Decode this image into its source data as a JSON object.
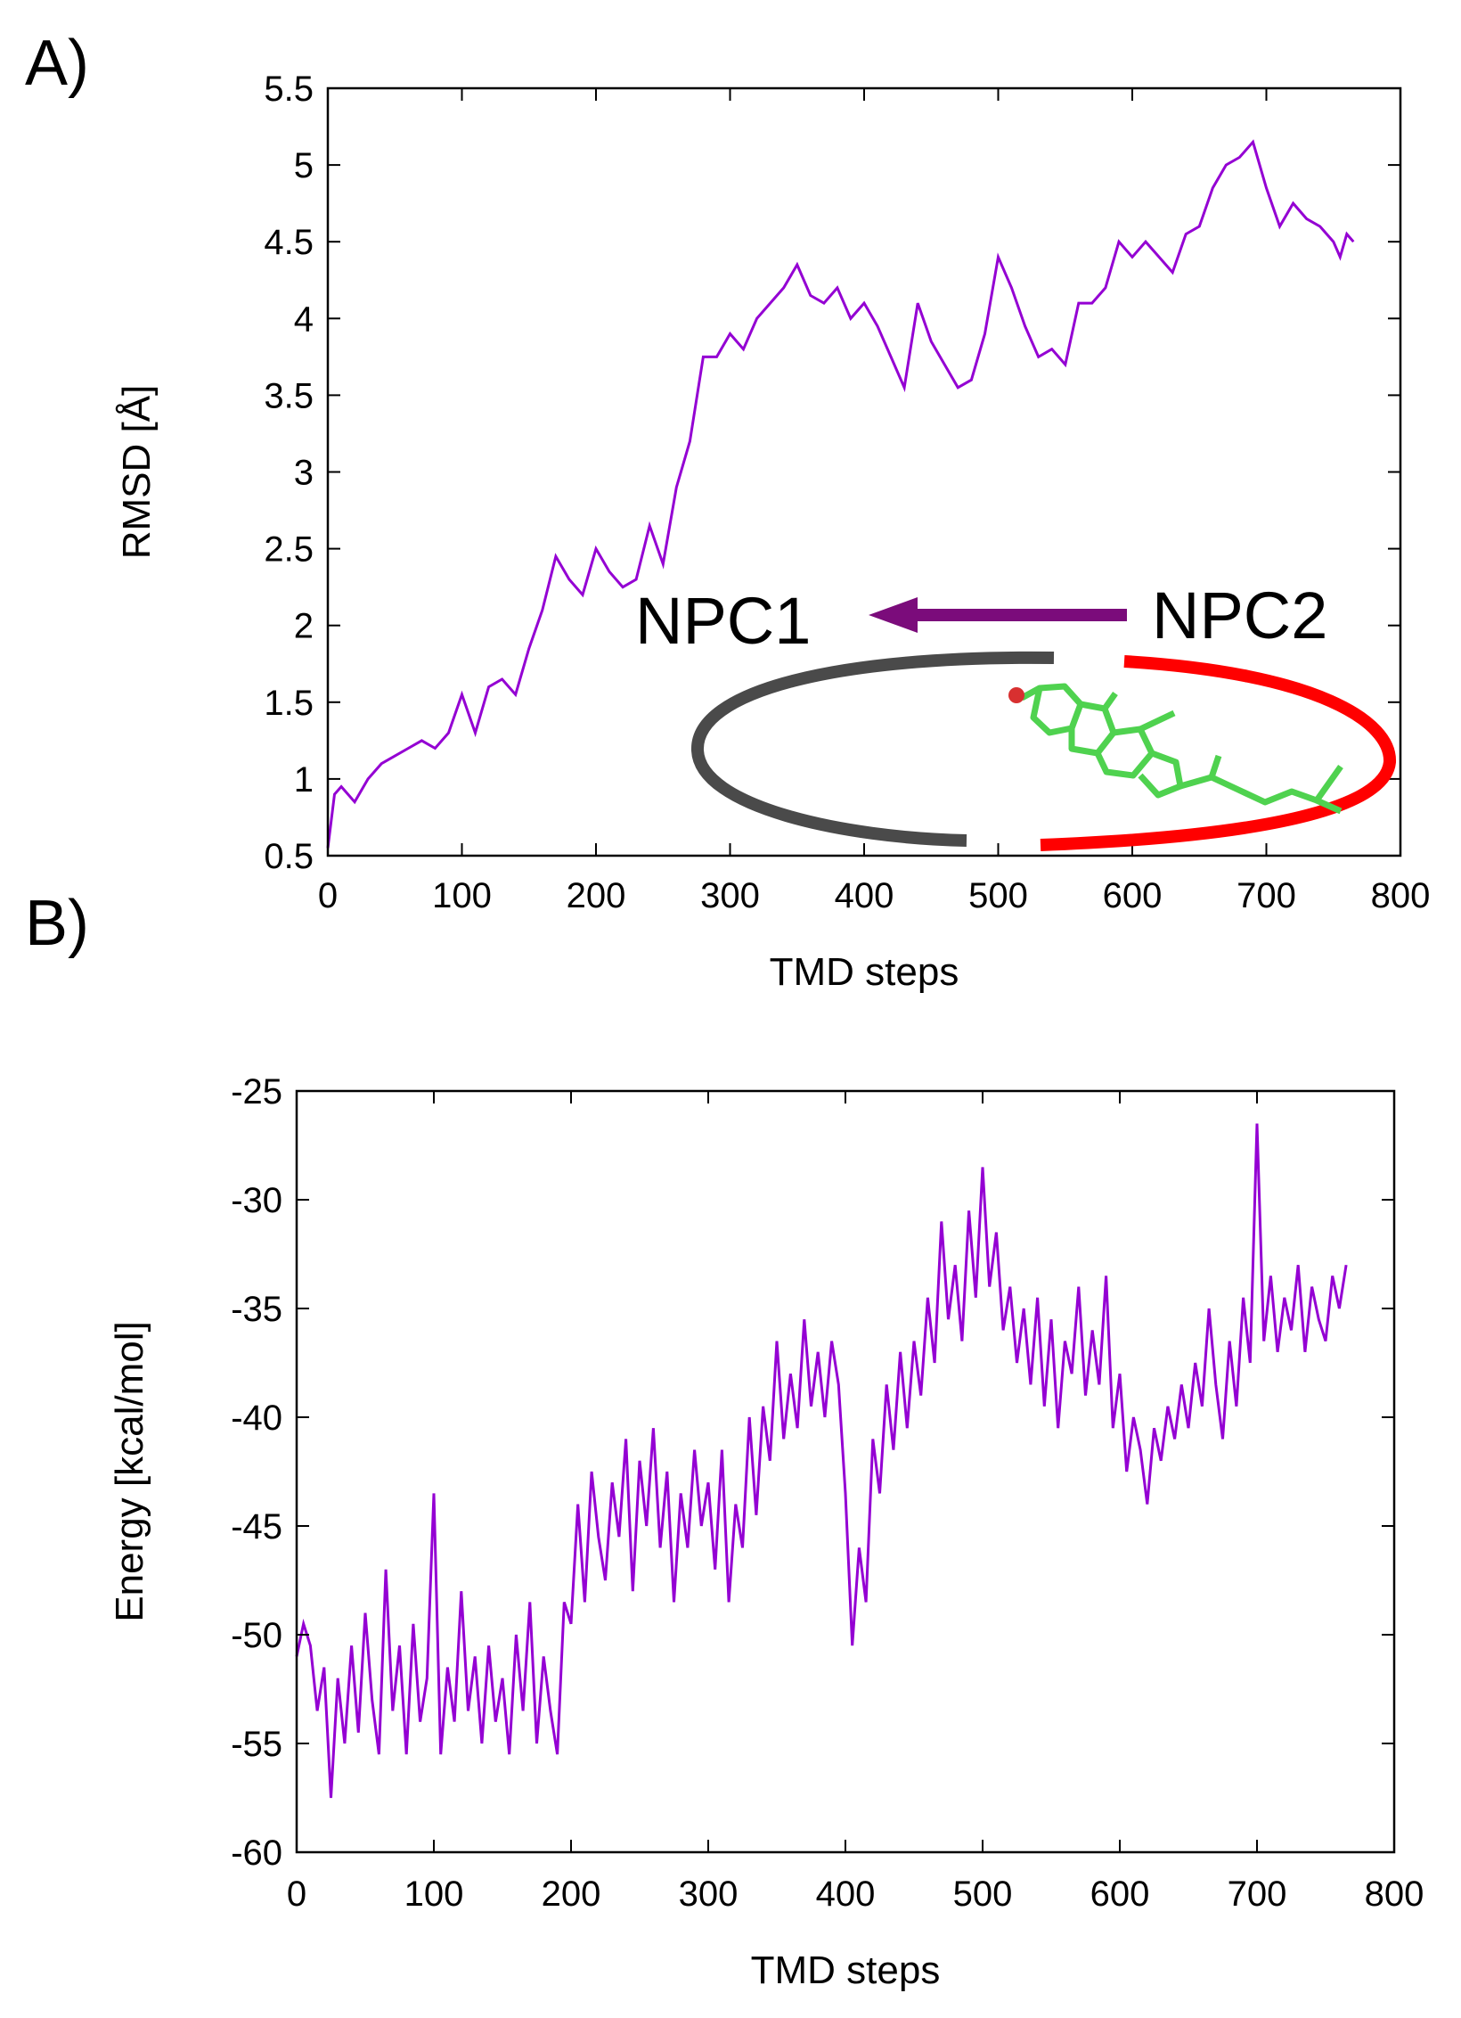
{
  "panels": {
    "a": "A)",
    "b": "B)"
  },
  "colors": {
    "line": "#9400d3",
    "arrow": "#7b0c7b",
    "npc1_ring": "#4a4a4a",
    "npc2_ring": "#ff0000",
    "molecule": "#4fd24f",
    "oxygen": "#d83030"
  },
  "inset": {
    "npc1": "NPC1",
    "npc2": "NPC2"
  },
  "chart_data": [
    {
      "type": "line",
      "title": "",
      "xlabel": "TMD steps",
      "ylabel": "RMSD [Å]",
      "xlim": [
        0,
        800
      ],
      "ylim": [
        0.5,
        5.5
      ],
      "xticks": [
        "0",
        "100",
        "200",
        "300",
        "400",
        "500",
        "600",
        "700",
        "800"
      ],
      "yticks": [
        "0.5",
        "1",
        "1.5",
        "2",
        "2.5",
        "3",
        "3.5",
        "4",
        "4.5",
        "5",
        "5.5"
      ],
      "series": [
        {
          "name": "RMSD",
          "x": [
            0,
            5,
            10,
            20,
            30,
            40,
            50,
            60,
            70,
            80,
            90,
            100,
            110,
            120,
            130,
            140,
            150,
            160,
            170,
            180,
            190,
            200,
            210,
            220,
            230,
            240,
            250,
            260,
            270,
            280,
            290,
            300,
            310,
            320,
            330,
            340,
            350,
            360,
            370,
            380,
            390,
            400,
            410,
            420,
            430,
            440,
            450,
            460,
            470,
            480,
            490,
            500,
            510,
            520,
            530,
            540,
            550,
            560,
            570,
            580,
            590,
            600,
            610,
            620,
            630,
            640,
            650,
            660,
            670,
            680,
            690,
            700,
            710,
            720,
            730,
            740,
            750,
            755,
            760,
            765
          ],
          "y": [
            0.55,
            0.9,
            0.95,
            0.85,
            1.0,
            1.1,
            1.15,
            1.2,
            1.25,
            1.2,
            1.3,
            1.55,
            1.3,
            1.6,
            1.65,
            1.55,
            1.85,
            2.1,
            2.45,
            2.3,
            2.2,
            2.5,
            2.35,
            2.25,
            2.3,
            2.65,
            2.4,
            2.9,
            3.2,
            3.75,
            3.75,
            3.9,
            3.8,
            4.0,
            4.1,
            4.2,
            4.35,
            4.15,
            4.1,
            4.2,
            4.0,
            4.1,
            3.95,
            3.75,
            3.55,
            4.1,
            3.85,
            3.7,
            3.55,
            3.6,
            3.9,
            4.4,
            4.2,
            3.95,
            3.75,
            3.8,
            3.7,
            4.1,
            4.1,
            4.2,
            4.5,
            4.4,
            4.5,
            4.4,
            4.3,
            4.55,
            4.6,
            4.85,
            5.0,
            5.05,
            5.15,
            4.85,
            4.6,
            4.75,
            4.65,
            4.6,
            4.5,
            4.4,
            4.55,
            4.5
          ]
        }
      ]
    },
    {
      "type": "line",
      "title": "",
      "xlabel": "TMD steps",
      "ylabel": "Energy [kcal/mol]",
      "xlim": [
        0,
        800
      ],
      "ylim": [
        -60,
        -25
      ],
      "xticks": [
        "0",
        "100",
        "200",
        "300",
        "400",
        "500",
        "600",
        "700",
        "800"
      ],
      "yticks": [
        "-25",
        "-30",
        "-35",
        "-40",
        "-45",
        "-50",
        "-55",
        "-60"
      ],
      "series": [
        {
          "name": "Energy",
          "x": [
            0,
            5,
            10,
            15,
            20,
            25,
            30,
            35,
            40,
            45,
            50,
            55,
            60,
            65,
            70,
            75,
            80,
            85,
            90,
            95,
            100,
            105,
            110,
            115,
            120,
            125,
            130,
            135,
            140,
            145,
            150,
            155,
            160,
            165,
            170,
            175,
            180,
            185,
            190,
            195,
            200,
            205,
            210,
            215,
            220,
            225,
            230,
            235,
            240,
            245,
            250,
            255,
            260,
            265,
            270,
            275,
            280,
            285,
            290,
            295,
            300,
            305,
            310,
            315,
            320,
            325,
            330,
            335,
            340,
            345,
            350,
            355,
            360,
            365,
            370,
            375,
            380,
            385,
            390,
            395,
            400,
            405,
            410,
            415,
            420,
            425,
            430,
            435,
            440,
            445,
            450,
            455,
            460,
            465,
            470,
            475,
            480,
            485,
            490,
            495,
            500,
            505,
            510,
            515,
            520,
            525,
            530,
            535,
            540,
            545,
            550,
            555,
            560,
            565,
            570,
            575,
            580,
            585,
            590,
            595,
            600,
            605,
            610,
            615,
            620,
            625,
            630,
            635,
            640,
            645,
            650,
            655,
            660,
            665,
            670,
            675,
            680,
            685,
            690,
            695,
            700,
            705,
            710,
            715,
            720,
            725,
            730,
            735,
            740,
            745,
            750,
            755,
            760,
            765
          ],
          "y": [
            -51.0,
            -49.5,
            -50.5,
            -53.5,
            -51.5,
            -57.5,
            -52.0,
            -55.0,
            -50.5,
            -54.5,
            -49.0,
            -53.0,
            -55.5,
            -47.0,
            -53.5,
            -50.5,
            -55.5,
            -49.5,
            -54.0,
            -52.0,
            -43.5,
            -55.5,
            -51.5,
            -54.0,
            -48.0,
            -53.5,
            -51.0,
            -55.0,
            -50.5,
            -54.0,
            -52.0,
            -55.5,
            -50.0,
            -53.5,
            -48.5,
            -55.0,
            -51.0,
            -53.5,
            -55.5,
            -48.5,
            -49.5,
            -44.0,
            -48.5,
            -42.5,
            -45.5,
            -47.5,
            -43.0,
            -45.5,
            -41.0,
            -48.0,
            -42.0,
            -45.0,
            -40.5,
            -46.0,
            -42.5,
            -48.5,
            -43.5,
            -46.0,
            -41.5,
            -45.0,
            -43.0,
            -47.0,
            -41.5,
            -48.5,
            -44.0,
            -46.0,
            -40.0,
            -44.5,
            -39.5,
            -42.0,
            -36.5,
            -41.0,
            -38.0,
            -40.5,
            -35.5,
            -39.5,
            -37.0,
            -40.0,
            -36.5,
            -38.5,
            -43.5,
            -50.5,
            -46.0,
            -48.5,
            -41.0,
            -43.5,
            -38.5,
            -41.5,
            -37.0,
            -40.5,
            -36.5,
            -39.0,
            -34.5,
            -37.5,
            -31.0,
            -35.5,
            -33.0,
            -36.5,
            -30.5,
            -34.5,
            -28.5,
            -34.0,
            -31.5,
            -36.0,
            -34.0,
            -37.5,
            -35.0,
            -38.5,
            -34.5,
            -39.5,
            -35.5,
            -40.5,
            -36.5,
            -38.0,
            -34.0,
            -39.0,
            -36.0,
            -38.5,
            -33.5,
            -40.5,
            -38.0,
            -42.5,
            -40.0,
            -41.5,
            -44.0,
            -40.5,
            -42.0,
            -39.5,
            -41.0,
            -38.5,
            -40.5,
            -37.5,
            -39.5,
            -35.0,
            -38.5,
            -41.0,
            -36.5,
            -39.5,
            -34.5,
            -37.5,
            -26.5,
            -36.5,
            -33.5,
            -37.0,
            -34.5,
            -36.0,
            -33.0,
            -37.0,
            -34.0,
            -35.5,
            -36.5,
            -33.5,
            -35.0,
            -33.0
          ]
        }
      ]
    }
  ]
}
